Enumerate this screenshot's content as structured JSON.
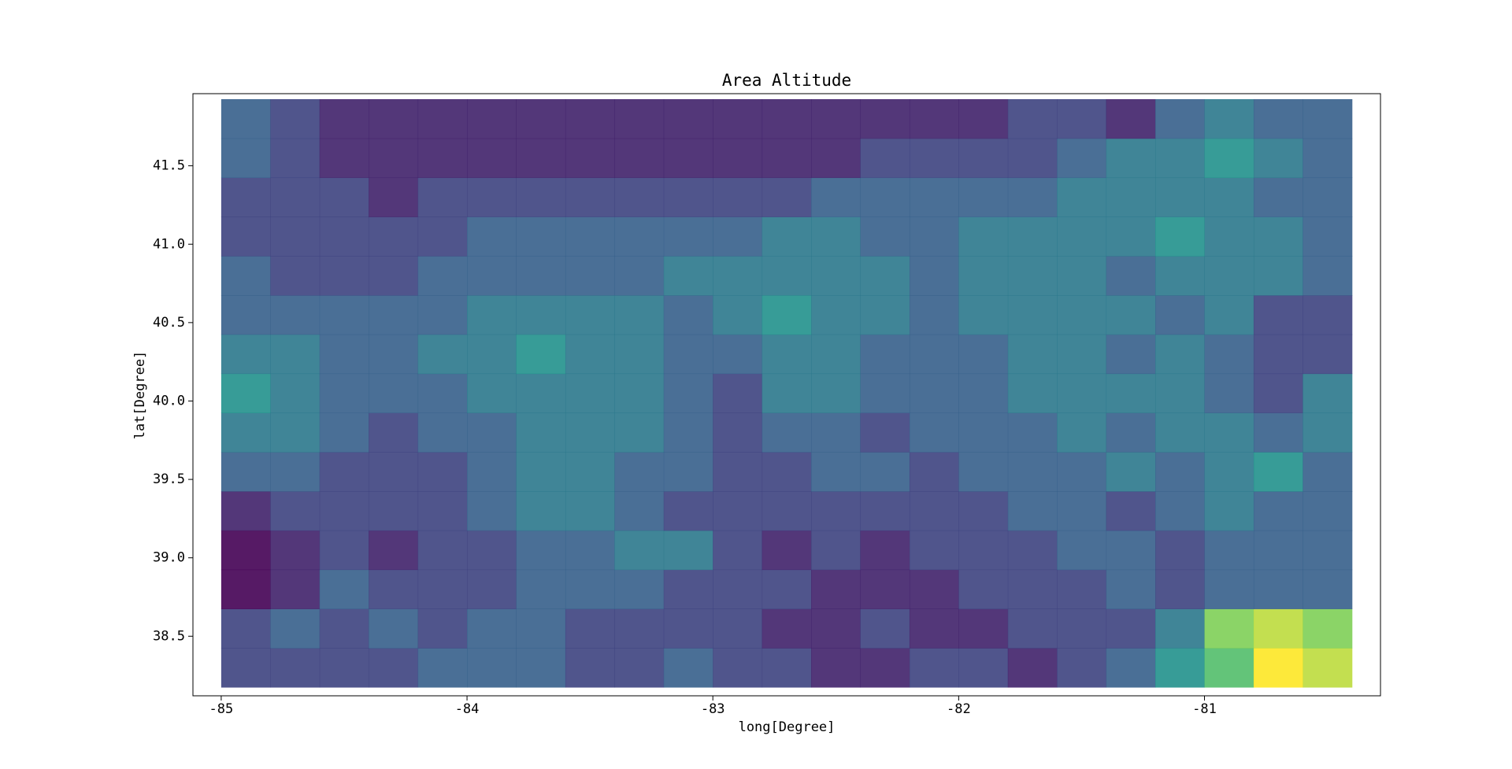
{
  "chart_data": {
    "type": "scatter",
    "title": "Area Altitude",
    "x_label": "long[Degree]",
    "y_label": "lat[Degree]",
    "colormap": "viridis",
    "x": [
      -84.9,
      -84.7,
      -84.5,
      -84.3,
      -84.1,
      -83.9,
      -83.7,
      -83.5,
      -83.3,
      -83.1,
      -82.9,
      -82.7,
      -82.5,
      -82.3,
      -82.1,
      -81.9,
      -81.7,
      -81.5,
      -81.3,
      -81.1,
      -80.9,
      -80.7,
      -80.5
    ],
    "y": [
      38.3,
      38.55,
      38.8,
      39.05,
      39.3,
      39.55,
      39.8,
      40.05,
      40.3,
      40.55,
      40.8,
      41.05,
      41.3,
      41.55,
      41.8
    ],
    "values": [
      [
        2,
        2,
        2,
        2,
        3,
        3,
        3,
        2,
        2,
        3,
        2,
        2,
        1,
        1,
        2,
        2,
        1,
        2,
        3,
        5,
        7,
        10,
        9
      ],
      [
        2,
        3,
        2,
        3,
        2,
        3,
        3,
        2,
        2,
        2,
        2,
        1,
        1,
        2,
        1,
        1,
        2,
        2,
        2,
        4,
        8,
        9,
        8
      ],
      [
        0,
        1,
        3,
        2,
        2,
        2,
        3,
        3,
        3,
        2,
        2,
        2,
        1,
        1,
        1,
        2,
        2,
        2,
        3,
        2,
        3,
        3,
        3
      ],
      [
        0,
        1,
        2,
        1,
        2,
        2,
        3,
        3,
        4,
        4,
        2,
        1,
        2,
        1,
        2,
        2,
        2,
        3,
        3,
        2,
        3,
        3,
        3
      ],
      [
        1,
        2,
        2,
        2,
        2,
        3,
        4,
        4,
        3,
        2,
        2,
        2,
        2,
        2,
        2,
        2,
        3,
        3,
        2,
        3,
        4,
        3,
        3
      ],
      [
        3,
        3,
        2,
        2,
        2,
        3,
        4,
        4,
        3,
        3,
        2,
        2,
        3,
        3,
        2,
        3,
        3,
        3,
        4,
        3,
        4,
        5,
        3
      ],
      [
        4,
        4,
        3,
        2,
        3,
        3,
        4,
        4,
        4,
        3,
        2,
        3,
        3,
        2,
        3,
        3,
        3,
        4,
        3,
        4,
        4,
        3,
        4
      ],
      [
        5,
        4,
        3,
        3,
        3,
        4,
        4,
        4,
        4,
        3,
        2,
        4,
        4,
        3,
        3,
        3,
        4,
        4,
        4,
        4,
        3,
        2,
        4
      ],
      [
        4,
        4,
        3,
        3,
        4,
        4,
        5,
        4,
        4,
        3,
        3,
        4,
        4,
        3,
        3,
        3,
        4,
        4,
        3,
        4,
        3,
        2,
        2
      ],
      [
        3,
        3,
        3,
        3,
        3,
        4,
        4,
        4,
        4,
        3,
        4,
        5,
        4,
        4,
        3,
        4,
        4,
        4,
        4,
        3,
        4,
        2,
        2
      ],
      [
        3,
        2,
        2,
        2,
        3,
        3,
        3,
        3,
        3,
        4,
        4,
        4,
        4,
        4,
        3,
        4,
        4,
        4,
        3,
        4,
        4,
        4,
        3
      ],
      [
        2,
        2,
        2,
        2,
        2,
        3,
        3,
        3,
        3,
        3,
        3,
        4,
        4,
        3,
        3,
        4,
        4,
        4,
        4,
        5,
        4,
        4,
        3
      ],
      [
        2,
        2,
        2,
        1,
        2,
        2,
        2,
        2,
        2,
        2,
        2,
        2,
        3,
        3,
        3,
        3,
        3,
        4,
        4,
        4,
        4,
        3,
        3
      ],
      [
        3,
        2,
        1,
        1,
        1,
        1,
        1,
        1,
        1,
        1,
        1,
        1,
        1,
        2,
        2,
        2,
        2,
        3,
        4,
        4,
        5,
        4,
        3
      ],
      [
        3,
        2,
        1,
        1,
        1,
        1,
        1,
        1,
        1,
        1,
        1,
        1,
        1,
        1,
        1,
        1,
        2,
        2,
        1,
        3,
        4,
        3,
        3
      ]
    ],
    "xlim": [
      -85.115,
      -80.284
    ],
    "ylim": [
      38.12,
      41.96
    ],
    "xticks": [
      -85,
      -84,
      -83,
      -82,
      -81
    ],
    "yticks": [
      38.5,
      {
        "value": 39,
        "label": "39.0"
      },
      39.5,
      {
        "value": 40,
        "label": "40.0"
      },
      40.5,
      {
        "value": 41,
        "label": "41.0"
      },
      41.5
    ]
  }
}
